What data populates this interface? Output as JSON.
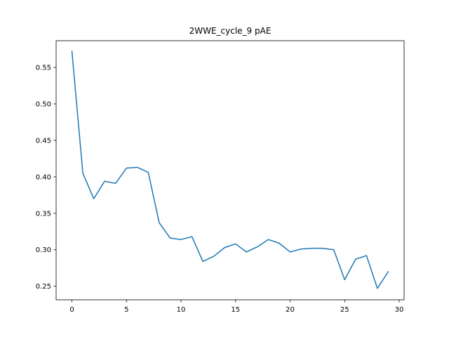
{
  "chart_data": {
    "type": "line",
    "title": "2WWE_cycle_9 pAE",
    "xlabel": "",
    "ylabel": "",
    "xlim": [
      -1.45,
      30.45
    ],
    "ylim": [
      0.2314,
      0.5866
    ],
    "xticks": [
      0,
      5,
      10,
      15,
      20,
      25,
      30
    ],
    "yticks": [
      0.25,
      0.3,
      0.35,
      0.4,
      0.45,
      0.5,
      0.55
    ],
    "xtick_labels": [
      "0",
      "5",
      "10",
      "15",
      "20",
      "25",
      "30"
    ],
    "ytick_labels": [
      "0.25",
      "0.30",
      "0.35",
      "0.40",
      "0.45",
      "0.50",
      "0.55"
    ],
    "grid": false,
    "line_color": "#1f77b4",
    "series": [
      {
        "x": [
          0,
          1,
          2,
          3,
          4,
          5,
          6,
          7,
          8,
          9,
          10,
          11,
          12,
          13,
          14,
          15,
          16,
          17,
          18,
          19,
          20,
          21,
          22,
          23,
          24,
          25,
          26,
          27,
          28,
          29
        ],
        "values": [
          0.572,
          0.405,
          0.37,
          0.394,
          0.391,
          0.412,
          0.413,
          0.406,
          0.337,
          0.316,
          0.314,
          0.318,
          0.284,
          0.291,
          0.303,
          0.308,
          0.297,
          0.304,
          0.314,
          0.309,
          0.297,
          0.301,
          0.302,
          0.302,
          0.3,
          0.259,
          0.287,
          0.292,
          0.247,
          0.27
        ]
      }
    ]
  }
}
